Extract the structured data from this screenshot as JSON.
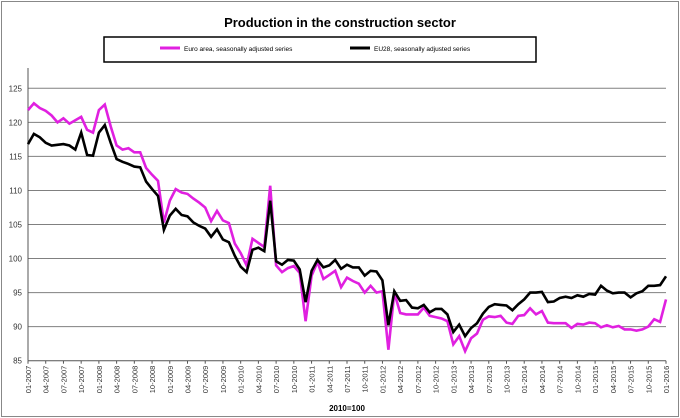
{
  "chart_data": {
    "type": "line",
    "title": "Production in the construction sector",
    "xlabel": "2010=100",
    "ylabel": "",
    "ylim": [
      85,
      125
    ],
    "yticks": [
      85,
      90,
      95,
      100,
      105,
      110,
      115,
      120,
      125
    ],
    "grid": true,
    "legend_position": "top-center",
    "start": "01-2007",
    "xtick_labels": [
      "01-2007",
      "04-2007",
      "07-2007",
      "10-2007",
      "01-2008",
      "04-2008",
      "07-2008",
      "10-2008",
      "01-2009",
      "04-2009",
      "07-2009",
      "10-2009",
      "01-2010",
      "04-2010",
      "07-2010",
      "10-2010",
      "01-2011",
      "04-2011",
      "07-2011",
      "10-2011",
      "01-2012",
      "04-2012",
      "07-2012",
      "10-2012",
      "01-2013",
      "04-2013",
      "07-2013",
      "10-2013",
      "01-2014",
      "04-2014",
      "07-2014",
      "10-2014",
      "01-2015",
      "04-2015",
      "07-2015",
      "10-2015",
      "01-2016"
    ],
    "series": [
      {
        "name": "Euro area, seasonally adjusted series",
        "color": "#e020e0",
        "values": [
          121.8,
          122.8,
          122.1,
          121.7,
          121.0,
          120.0,
          120.6,
          119.8,
          120.3,
          120.8,
          118.9,
          118.5,
          121.8,
          122.6,
          119.4,
          116.6,
          116.0,
          116.2,
          115.6,
          115.6,
          113.3,
          112.3,
          111.4,
          105.3,
          108.5,
          110.2,
          109.7,
          109.5,
          108.8,
          108.2,
          107.5,
          105.5,
          107.0,
          105.6,
          105.2,
          102.2,
          100.8,
          99.0,
          102.9,
          102.3,
          101.7,
          110.7,
          99.0,
          98.0,
          98.6,
          98.9,
          97.9,
          90.8,
          97.5,
          99.5,
          97.0,
          97.6,
          98.2,
          95.8,
          97.2,
          96.7,
          96.3,
          95.0,
          96.0,
          95.0,
          95.2,
          86.6,
          95.0,
          92.0,
          91.8,
          91.8,
          91.8,
          92.8,
          91.6,
          91.4,
          91.2,
          90.8,
          87.4,
          88.6,
          86.4,
          88.3,
          89.0,
          91.0,
          91.5,
          91.4,
          91.6,
          90.6,
          90.4,
          91.6,
          91.7,
          92.7,
          91.8,
          92.3,
          90.6,
          90.5,
          90.5,
          90.5,
          89.8,
          90.4,
          90.3,
          90.6,
          90.5,
          89.9,
          90.2,
          89.9,
          90.1,
          89.6,
          89.6,
          89.4,
          89.6,
          90.0,
          91.1,
          90.7,
          94.0
        ]
      },
      {
        "name": "EU28, seasonally adjusted series",
        "color": "#000000",
        "values": [
          116.8,
          118.3,
          117.8,
          117.0,
          116.6,
          116.7,
          116.8,
          116.6,
          116.0,
          118.5,
          115.2,
          115.1,
          118.5,
          119.6,
          117.0,
          114.6,
          114.2,
          113.9,
          113.5,
          113.4,
          111.3,
          110.2,
          109.2,
          104.2,
          106.3,
          107.3,
          106.4,
          106.2,
          105.3,
          104.8,
          104.4,
          103.2,
          104.3,
          102.8,
          102.4,
          100.4,
          98.8,
          98.0,
          101.3,
          101.6,
          101.1,
          108.5,
          99.6,
          99.1,
          99.8,
          99.7,
          98.4,
          93.6,
          98.2,
          99.8,
          98.7,
          99.0,
          99.8,
          98.5,
          99.1,
          98.7,
          98.7,
          97.5,
          98.2,
          98.1,
          96.8,
          90.2,
          95.2,
          93.8,
          93.9,
          92.8,
          92.7,
          93.2,
          92.1,
          92.6,
          92.6,
          91.8,
          89.2,
          90.3,
          88.6,
          89.8,
          90.5,
          91.9,
          92.9,
          93.3,
          93.2,
          93.1,
          92.4,
          93.3,
          94.0,
          95.0,
          95.0,
          95.1,
          93.6,
          93.7,
          94.2,
          94.4,
          94.2,
          94.6,
          94.4,
          94.8,
          94.7,
          96.0,
          95.3,
          94.9,
          95.0,
          95.0,
          94.3,
          94.9,
          95.2,
          96.0,
          96.0,
          96.1,
          97.4
        ]
      }
    ]
  }
}
